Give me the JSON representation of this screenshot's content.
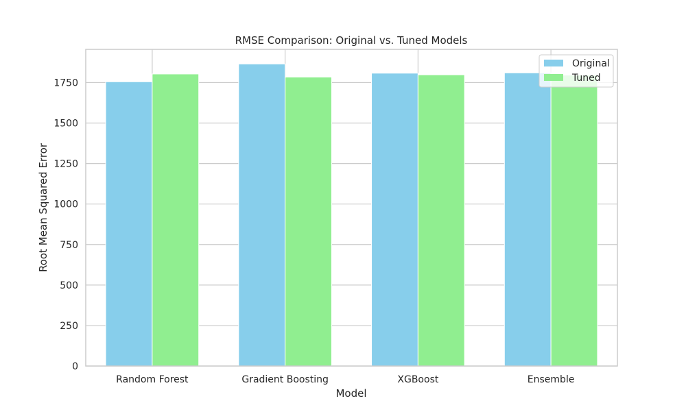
{
  "chart_data": {
    "type": "bar",
    "title": "RMSE Comparison: Original vs. Tuned Models",
    "xlabel": "Model",
    "ylabel": "Root Mean Squared Error",
    "categories": [
      "Random Forest",
      "Gradient Boosting",
      "XGBoost",
      "Ensemble"
    ],
    "series": [
      {
        "name": "Original",
        "color": "#87ceeb",
        "values": [
          1755,
          1865,
          1808,
          1810
        ]
      },
      {
        "name": "Tuned",
        "color": "#90ee90",
        "values": [
          1803,
          1784,
          1798,
          1796
        ]
      }
    ],
    "ylim": [
      0,
      1955
    ],
    "yticks": [
      0,
      250,
      500,
      750,
      1000,
      1250,
      1500,
      1750
    ],
    "grid": true,
    "legend_position": "top-right"
  }
}
